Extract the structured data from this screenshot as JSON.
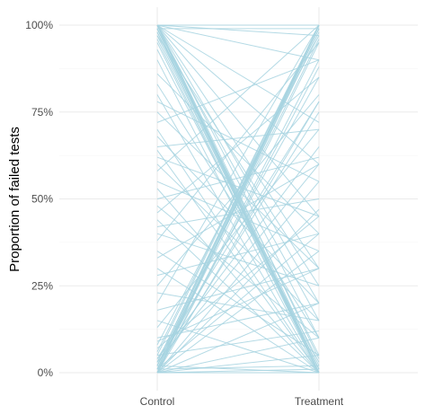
{
  "chart_data": {
    "type": "line",
    "title": "",
    "xlabel": "",
    "ylabel": "Proportion of failed tests",
    "categories": [
      "Control",
      "Treatment"
    ],
    "ylim": [
      0,
      1
    ],
    "y_ticks": [
      {
        "value": 0,
        "label": "0%"
      },
      {
        "value": 0.25,
        "label": "25%"
      },
      {
        "value": 0.5,
        "label": "50%"
      },
      {
        "value": 0.75,
        "label": "75%"
      },
      {
        "value": 1,
        "label": "100%"
      }
    ],
    "grid": true,
    "legend": "none",
    "line_color": "#A7D3E0",
    "pairs": [
      [
        1.0,
        0.0
      ],
      [
        1.0,
        0.01
      ],
      [
        1.0,
        0.0
      ],
      [
        0.99,
        0.0
      ],
      [
        1.0,
        0.02
      ],
      [
        0.99,
        0.01
      ],
      [
        1.0,
        0.04
      ],
      [
        0.98,
        0.0
      ],
      [
        1.0,
        0.1
      ],
      [
        0.97,
        0.01
      ],
      [
        1.0,
        0.2
      ],
      [
        0.99,
        0.0
      ],
      [
        1.0,
        0.3
      ],
      [
        0.98,
        0.05
      ],
      [
        1.0,
        0.45
      ],
      [
        0.96,
        0.0
      ],
      [
        1.0,
        0.6
      ],
      [
        0.99,
        0.15
      ],
      [
        1.0,
        0.72
      ],
      [
        0.97,
        0.25
      ],
      [
        1.0,
        0.9
      ],
      [
        1.0,
        1.0
      ],
      [
        0.99,
        0.99
      ],
      [
        1.0,
        0.97
      ],
      [
        0.95,
        0.0
      ],
      [
        0.93,
        0.03
      ],
      [
        0.9,
        0.0
      ],
      [
        0.86,
        0.4
      ],
      [
        0.83,
        0.1
      ],
      [
        0.8,
        0.0
      ],
      [
        0.78,
        0.55
      ],
      [
        0.75,
        0.3
      ],
      [
        0.72,
        0.9
      ],
      [
        0.7,
        0.0
      ],
      [
        0.68,
        0.2
      ],
      [
        0.65,
        0.7
      ],
      [
        0.64,
        0.0
      ],
      [
        0.62,
        0.45
      ],
      [
        0.6,
        0.15
      ],
      [
        0.58,
        1.0
      ],
      [
        0.55,
        0.35
      ],
      [
        0.53,
        0.0
      ],
      [
        0.5,
        0.62
      ],
      [
        0.48,
        0.1
      ],
      [
        0.46,
        0.85
      ],
      [
        0.44,
        0.0
      ],
      [
        0.42,
        0.5
      ],
      [
        0.4,
        0.25
      ],
      [
        0.38,
        0.95
      ],
      [
        0.35,
        0.05
      ],
      [
        0.33,
        0.6
      ],
      [
        0.3,
        0.0
      ],
      [
        0.28,
        0.4
      ],
      [
        0.25,
        0.8
      ],
      [
        0.23,
        0.15
      ],
      [
        0.2,
        1.0
      ],
      [
        0.18,
        0.3
      ],
      [
        0.15,
        0.0
      ],
      [
        0.13,
        0.7
      ],
      [
        0.1,
        0.2
      ],
      [
        0.08,
        0.97
      ],
      [
        0.07,
        0.45
      ],
      [
        0.05,
        1.0
      ],
      [
        0.04,
        0.65
      ],
      [
        0.03,
        0.99
      ],
      [
        0.02,
        0.85
      ],
      [
        0.02,
        1.0
      ],
      [
        0.01,
        0.75
      ],
      [
        0.01,
        0.98
      ],
      [
        0.0,
        1.0
      ],
      [
        0.0,
        0.9
      ],
      [
        0.01,
        1.0
      ],
      [
        0.0,
        0.55
      ],
      [
        0.03,
        1.0
      ],
      [
        0.0,
        0.35
      ],
      [
        0.02,
        0.96
      ],
      [
        0.0,
        0.2
      ],
      [
        0.04,
        0.78
      ],
      [
        0.0,
        0.05
      ],
      [
        0.01,
        0.02
      ],
      [
        0.0,
        0.0
      ],
      [
        0.02,
        0.0
      ],
      [
        0.0,
        0.01
      ],
      [
        0.05,
        0.12
      ],
      [
        0.01,
        0.4
      ],
      [
        0.0,
        0.78
      ],
      [
        0.0,
        1.0
      ],
      [
        0.02,
        1.0
      ],
      [
        0.0,
        0.99
      ],
      [
        0.06,
        1.0
      ],
      [
        0.01,
        0.95
      ],
      [
        0.0,
        0.88
      ],
      [
        0.03,
        0.6
      ],
      [
        0.0,
        0.47
      ],
      [
        0.09,
        0.3
      ],
      [
        0.0,
        0.1
      ]
    ]
  }
}
